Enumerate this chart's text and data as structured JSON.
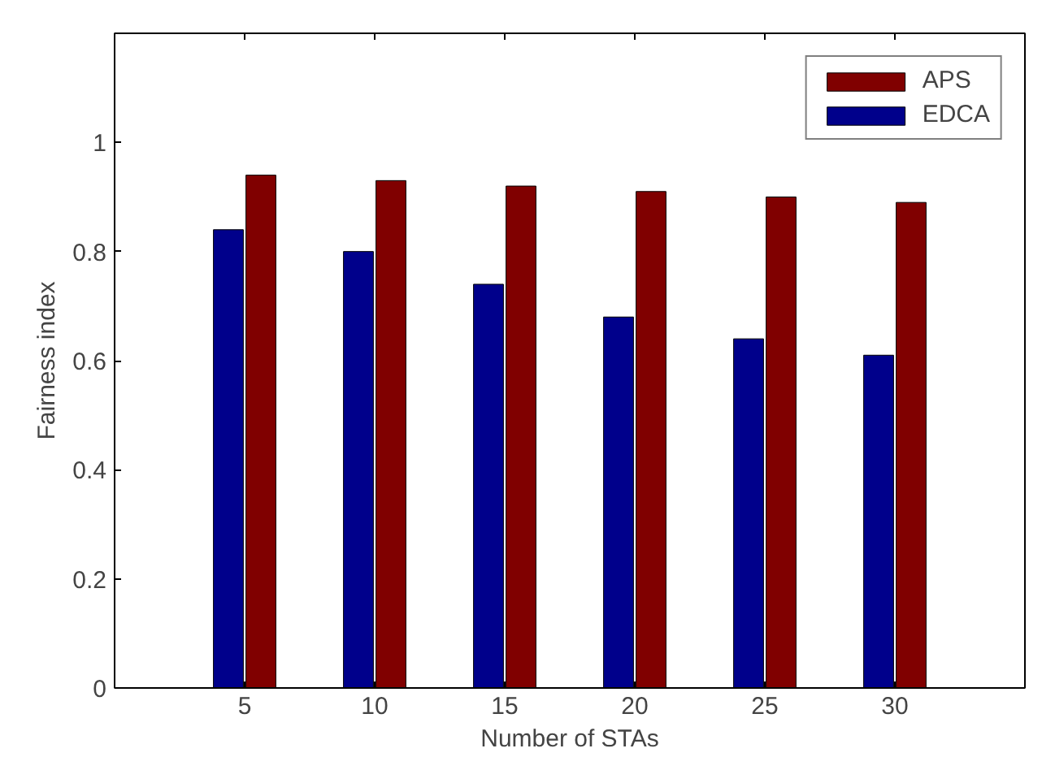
{
  "chart_data": {
    "type": "bar",
    "xlabel": "Number of STAs",
    "ylabel": "Fairness index",
    "categories": [
      "5",
      "10",
      "15",
      "20",
      "25",
      "30"
    ],
    "series": [
      {
        "name": "EDCA",
        "color": "#00008b",
        "values": [
          0.84,
          0.8,
          0.74,
          0.68,
          0.64,
          0.61
        ]
      },
      {
        "name": "APS",
        "color": "#800000",
        "values": [
          0.94,
          0.93,
          0.92,
          0.91,
          0.9,
          0.89
        ]
      }
    ],
    "ylim": [
      0,
      1.2
    ],
    "yticks": [
      0,
      0.2,
      0.4,
      0.6,
      0.8,
      1
    ],
    "grid": false,
    "legend": "top right"
  }
}
